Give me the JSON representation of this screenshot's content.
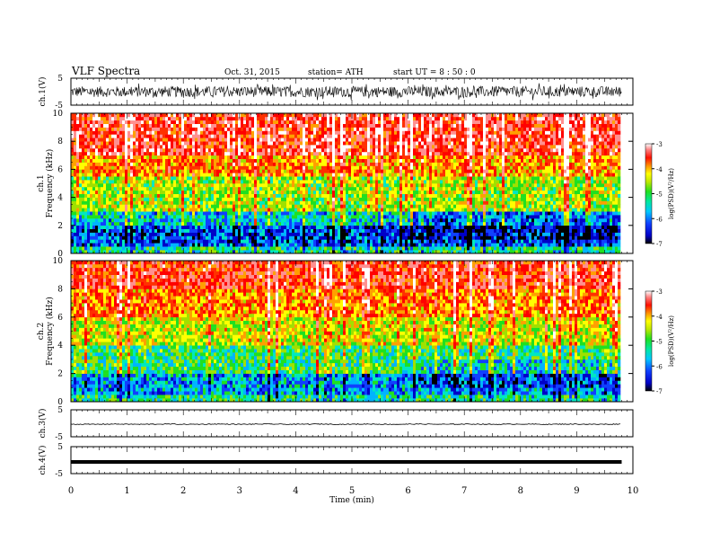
{
  "header": {
    "title": "VLF  Spectra",
    "date": "Oct. 31, 2015",
    "station": "station= ATH",
    "start": "start  UT  =   8 : 50 : 0"
  },
  "chart_data": [
    {
      "type": "line",
      "panel": "ch1-waveform",
      "ylabel": "ch.1(V)",
      "ylim": [
        -5,
        5
      ],
      "yticks": [
        "5",
        "-5"
      ],
      "x_range_min": [
        0,
        9.8
      ],
      "series": [
        {
          "baseline": 0,
          "amplitude_v": 2.0
        }
      ]
    },
    {
      "type": "heatmap",
      "panel": "ch1-spectrogram",
      "ylabel": "ch.1\nFrequency  (kHz)",
      "ylim": [
        0,
        10
      ],
      "yticks": [
        "0",
        "2",
        "4",
        "6",
        "8",
        "10"
      ],
      "colorbar": {
        "label": "log(PSD)(V²/Hz)",
        "range": [
          -7,
          -3
        ],
        "ticks": [
          "-3",
          "-4",
          "-5",
          "-6",
          "-7"
        ]
      },
      "bands_khz_to_log_psd": [
        [
          0,
          0.4,
          -5.5
        ],
        [
          0.4,
          2,
          -6.2
        ],
        [
          2,
          3,
          -5.8
        ],
        [
          3,
          5.5,
          -5.0
        ],
        [
          5.5,
          7,
          -4.4
        ],
        [
          7,
          10,
          -3.8
        ]
      ]
    },
    {
      "type": "heatmap",
      "panel": "ch2-spectrogram",
      "ylabel": "ch.2\nFrequency  (kHz)",
      "ylim": [
        0,
        10
      ],
      "yticks": [
        "0",
        "2",
        "4",
        "6",
        "8",
        "10"
      ],
      "colorbar": {
        "label": "log(PSD)(V²/Hz)",
        "range": [
          -7,
          -3
        ],
        "ticks": [
          "-3",
          "-4",
          "-5",
          "-6",
          "-7"
        ]
      },
      "bands_khz_to_log_psd": [
        [
          0,
          0.4,
          -5.5
        ],
        [
          0.4,
          2,
          -5.9
        ],
        [
          2,
          4,
          -5.4
        ],
        [
          4,
          6,
          -4.8
        ],
        [
          6,
          8,
          -4.3
        ],
        [
          8,
          10,
          -3.9
        ]
      ]
    },
    {
      "type": "line",
      "panel": "ch3-waveform",
      "ylabel": "ch.3(V)",
      "ylim": [
        -5,
        5
      ],
      "yticks": [
        "5",
        "-5"
      ],
      "series": [
        {
          "baseline": 0,
          "amplitude_v": 0.15
        }
      ]
    },
    {
      "type": "line",
      "panel": "ch4-waveform",
      "ylabel": "ch.4(V)",
      "ylim": [
        -5,
        5
      ],
      "yticks": [
        "5",
        "-5"
      ],
      "series": [
        {
          "baseline": 0,
          "amplitude_v": 0.0
        }
      ]
    }
  ],
  "xaxis": {
    "label": "Time  (min)",
    "range": [
      0,
      10
    ],
    "ticks": [
      "0",
      "1",
      "2",
      "3",
      "4",
      "5",
      "6",
      "7",
      "8",
      "9",
      "10"
    ]
  },
  "colors": {
    "scale": [
      "#000000",
      "#0000c8",
      "#1040ff",
      "#00b4ff",
      "#00e8c0",
      "#20e020",
      "#a0e000",
      "#ffff00",
      "#ffa000",
      "#ff3000",
      "#ff0000",
      "#ff9090",
      "#ffffff"
    ]
  }
}
